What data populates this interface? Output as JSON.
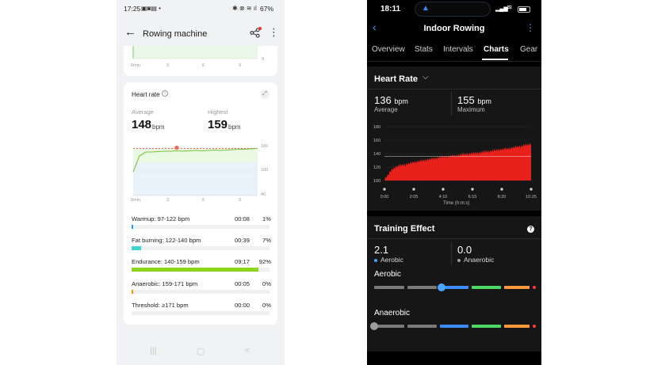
{
  "left_app": {
    "status": {
      "time": "17:25",
      "battery": "67%"
    },
    "header": {
      "title": "Rowing machine"
    },
    "top_chart": {
      "x_ticks": [
        "0min",
        "3",
        "6",
        "9"
      ],
      "y_tick": "0"
    },
    "heart_rate": {
      "title": "Heart rate",
      "average_label": "Average",
      "average_value": "148",
      "average_unit": "bpm",
      "highest_label": "Highest",
      "highest_value": "159",
      "highest_unit": "bpm",
      "chart_y_ticks": [
        "160",
        "100",
        "40"
      ],
      "chart_x_ticks": [
        "0min",
        "3",
        "6",
        "9"
      ]
    },
    "zones": [
      {
        "label": "Warmup: 97-122 bpm",
        "time": "00:08",
        "pct": "1%",
        "fill": 0.01,
        "color": "#2196f3"
      },
      {
        "label": "Fat burning: 122-140 bpm",
        "time": "00:39",
        "pct": "7%",
        "fill": 0.07,
        "color": "#3dd6d0"
      },
      {
        "label": "Endurance: 140-159 bpm",
        "time": "09:17",
        "pct": "92%",
        "fill": 0.92,
        "color": "#8bd61c"
      },
      {
        "label": "Anaerobic: 159-171 bpm",
        "time": "00:05",
        "pct": "0%",
        "fill": 0.005,
        "color": "#ff9800"
      },
      {
        "label": "Threshold: ≥171 bpm",
        "time": "00:00",
        "pct": "0%",
        "fill": 0,
        "color": "#f44336"
      }
    ]
  },
  "right_app": {
    "status": {
      "time": "18:11"
    },
    "header": {
      "title": "Indoor Rowing"
    },
    "tabs": [
      "Overview",
      "Stats",
      "Intervals",
      "Charts",
      "Gear"
    ],
    "active_tab": "Charts",
    "heart_rate": {
      "title": "Heart Rate",
      "average_value": "136",
      "average_unit": "bpm",
      "average_label": "Average",
      "max_value": "155",
      "max_unit": "bpm",
      "max_label": "Maximum",
      "chart_x_label": "Time (h:m:s)"
    },
    "training_effect": {
      "title": "Training Effect",
      "aerobic_value": "2.1",
      "aerobic_label": "Aerobic",
      "anaerobic_value": "0.0",
      "anaerobic_label": "Anaerobic",
      "aerobic_heading": "Aerobic",
      "anaerobic_heading": "Anaerobic",
      "aerobic_level": 2.1,
      "anaerobic_level": 0.0
    }
  },
  "chart_data": [
    {
      "type": "line",
      "title": "Heart rate",
      "x": [
        0,
        0.5,
        1,
        1.5,
        2,
        2.5,
        3,
        3.5,
        4,
        4.5,
        5,
        5.5,
        6,
        6.5,
        7,
        7.5,
        8,
        8.5,
        9,
        9.5,
        10
      ],
      "series": [
        {
          "values": [
            100,
            140,
            150,
            150,
            151,
            152,
            152,
            153,
            152,
            153,
            154,
            153,
            154,
            155,
            154,
            155,
            156,
            157,
            157,
            158,
            159
          ]
        }
      ],
      "x_ticks": [
        "0min",
        "3",
        "6",
        "9"
      ],
      "y_ticks": [
        40,
        100,
        160
      ],
      "ylim": [
        40,
        160
      ],
      "reference_value": 159
    },
    {
      "type": "area",
      "title": "Heart Rate",
      "xlabel": "Time (h:m:s)",
      "x_ticks": [
        "0:00",
        "2:05",
        "4:10",
        "6:15",
        "8:20",
        "10:25"
      ],
      "y_ticks": [
        100,
        120,
        140,
        160,
        180
      ],
      "ylim": [
        100,
        180
      ],
      "x": [
        0,
        0.25,
        0.5,
        0.75,
        1,
        1.5,
        2,
        2.5,
        3,
        3.5,
        4,
        4.5,
        5,
        5.5,
        6,
        6.5,
        7,
        7.5,
        8,
        8.5,
        9,
        9.5,
        10,
        10.25
      ],
      "series": [
        {
          "values": [
            102,
            108,
            116,
            120,
            122,
            124,
            127,
            129,
            131,
            133,
            135,
            136,
            137,
            139,
            140,
            141,
            143,
            144,
            146,
            147,
            149,
            151,
            153,
            155
          ]
        }
      ],
      "reference_value": 136,
      "color": "#e8201c"
    }
  ]
}
